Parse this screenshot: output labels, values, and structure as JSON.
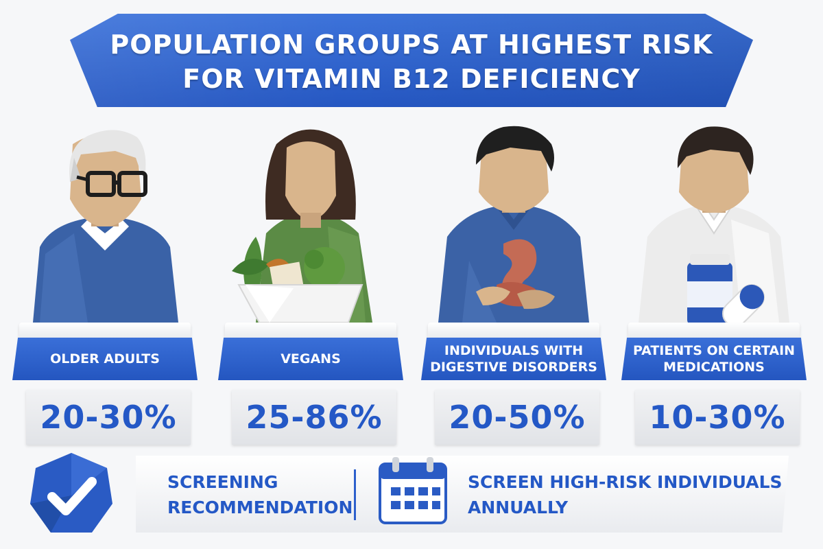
{
  "title": "POPULATION GROUPS AT HIGHEST RISK FOR VITAMIN B12 DEFICIENCY",
  "groups": [
    {
      "label": "OLDER ADULTS",
      "value": "20-30%",
      "icon": "older-adult-icon"
    },
    {
      "label": "VEGANS",
      "value": "25-86%",
      "icon": "vegan-woman-icon"
    },
    {
      "label": "INDIVIDUALS WITH DIGESTIVE DISORDERS",
      "value": "20-50%",
      "icon": "digestive-disorder-icon"
    },
    {
      "label": "PATIENTS ON CERTAIN MEDICATIONS",
      "value": "10-30%",
      "icon": "medication-patient-icon"
    }
  ],
  "screening": {
    "label": "SCREENING RECOMMENDATION",
    "text": "SCREEN HIGH-RISK INDIVIDUALS ANNUALLY",
    "badge_icon": "checkmark-shield-icon",
    "calendar_icon": "calendar-icon"
  },
  "colors": {
    "accent": "#2d62d0",
    "text_blue": "#2458c6",
    "panel": "#eceef1"
  }
}
